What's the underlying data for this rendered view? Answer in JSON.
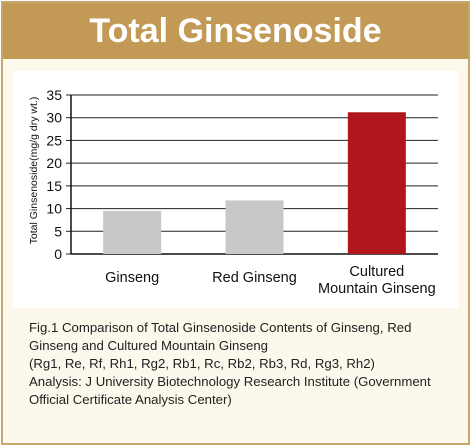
{
  "title": "Total Ginsenoside",
  "chart_data": {
    "type": "bar",
    "categories": [
      "Ginseng",
      "Red Ginseng",
      "Cultured\nMountain Ginseng"
    ],
    "values": [
      9.5,
      11.8,
      31.2
    ],
    "bar_colors": [
      "#c8c8c8",
      "#c8c8c8",
      "#b0161c"
    ],
    "ylabel": "Total Ginsenoside(mg/g dry wt.)",
    "xlabel": "",
    "ylim": [
      0,
      35
    ],
    "yticks": [
      0,
      5,
      10,
      15,
      20,
      25,
      30,
      35
    ],
    "grid": true
  },
  "caption": {
    "line1": "Fig.1 Comparison of Total Ginsenoside Contents of Ginseng, Red",
    "line2": "Ginseng and Cultured Mountain Ginseng",
    "line3": "(Rg1, Re, Rf, Rh1, Rg2, Rb1, Rc, Rb2, Rb3, Rd, Rg3, Rh2)",
    "line4": "Analysis: J University Biotechnology Research Institute (Government",
    "line5": "Official Certificate Analysis Center)"
  },
  "colors": {
    "title_bar": "#c39a55",
    "frame_border": "#c8a86a",
    "background": "#fdf8ec",
    "accent_bar": "#b0161c",
    "neutral_bar": "#c8c8c8"
  }
}
